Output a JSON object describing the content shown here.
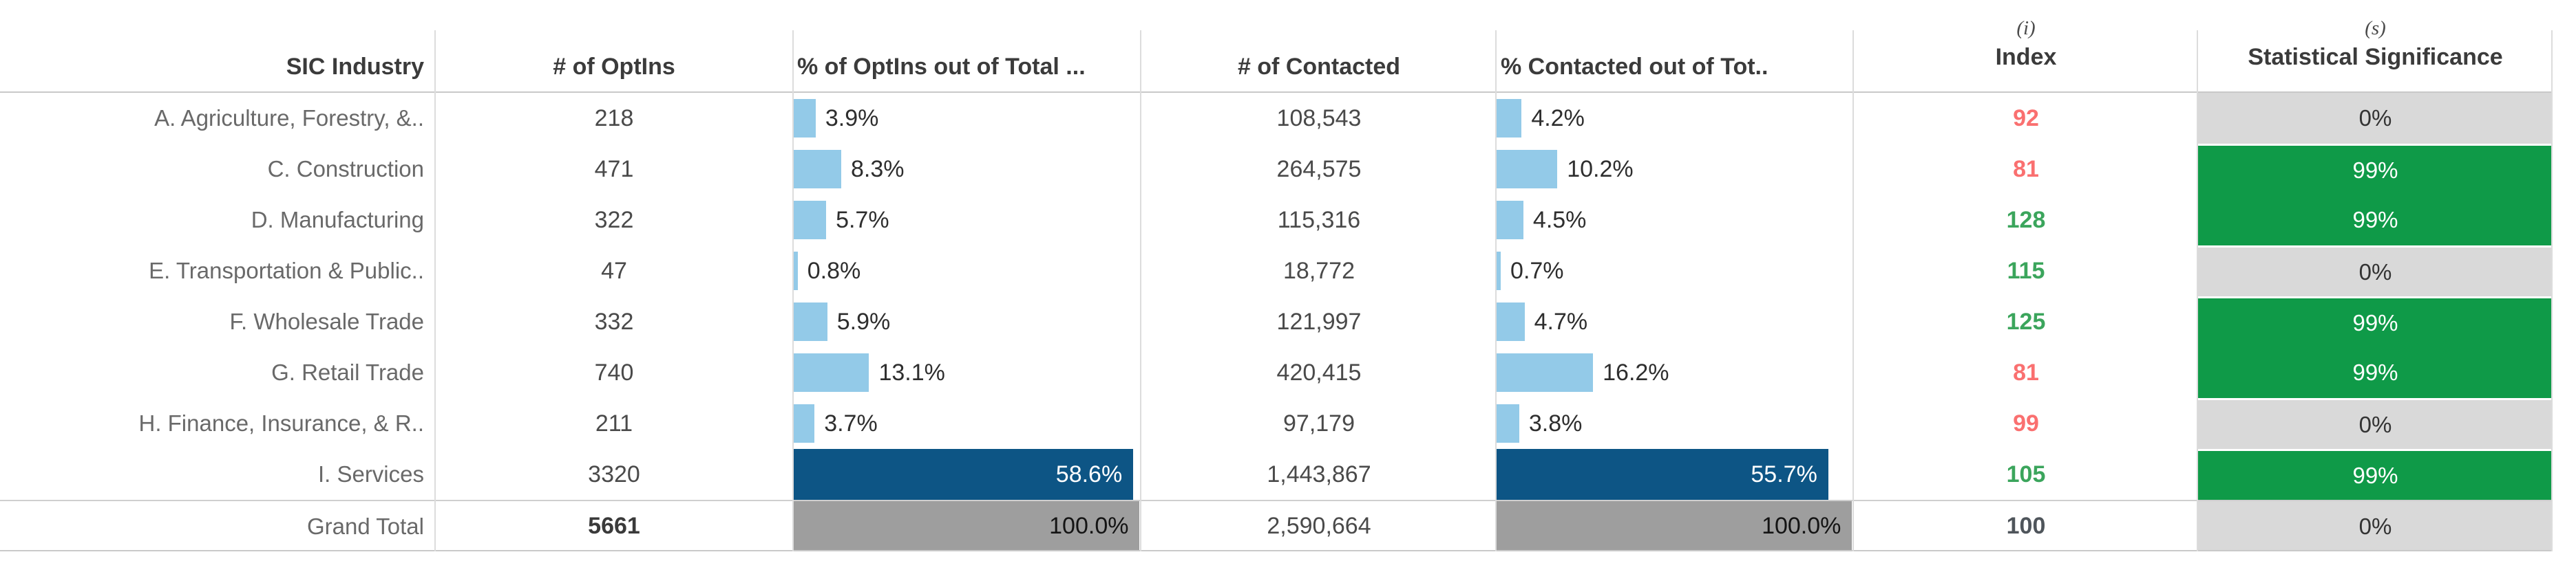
{
  "table": {
    "columns": {
      "industry": "SIC Industry",
      "optins": "# of OptIns",
      "optins_pct": "% of OptIns out of Total ...",
      "contacted": "# of Contacted",
      "contacted_pct": "% Contacted out of Tot..",
      "index_sup": "(i)",
      "index": "Index",
      "statsig_sup": "(s)",
      "statsig": "Statistical Significance"
    },
    "rows": [
      {
        "industry": "A. Agriculture, Forestry, &..",
        "optins": "218",
        "optins_pct": "3.9%",
        "contacted": "108,543",
        "contacted_pct": "4.2%",
        "index": "92",
        "stat_sig": "0%",
        "total": false
      },
      {
        "industry": "C. Construction",
        "optins": "471",
        "optins_pct": "8.3%",
        "contacted": "264,575",
        "contacted_pct": "10.2%",
        "index": "81",
        "stat_sig": "99%",
        "total": false
      },
      {
        "industry": "D. Manufacturing",
        "optins": "322",
        "optins_pct": "5.7%",
        "contacted": "115,316",
        "contacted_pct": "4.5%",
        "index": "128",
        "stat_sig": "99%",
        "total": false
      },
      {
        "industry": "E. Transportation & Public..",
        "optins": "47",
        "optins_pct": "0.8%",
        "contacted": "18,772",
        "contacted_pct": "0.7%",
        "index": "115",
        "stat_sig": "0%",
        "total": false
      },
      {
        "industry": "F. Wholesale Trade",
        "optins": "332",
        "optins_pct": "5.9%",
        "contacted": "121,997",
        "contacted_pct": "4.7%",
        "index": "125",
        "stat_sig": "99%",
        "total": false
      },
      {
        "industry": "G. Retail Trade",
        "optins": "740",
        "optins_pct": "13.1%",
        "contacted": "420,415",
        "contacted_pct": "16.2%",
        "index": "81",
        "stat_sig": "99%",
        "total": false
      },
      {
        "industry": "H. Finance, Insurance, & R..",
        "optins": "211",
        "optins_pct": "3.7%",
        "contacted": "97,179",
        "contacted_pct": "3.8%",
        "index": "99",
        "stat_sig": "0%",
        "total": false
      },
      {
        "industry": "I. Services",
        "optins": "3320",
        "optins_pct": "58.6%",
        "contacted": "1,443,867",
        "contacted_pct": "55.7%",
        "index": "105",
        "stat_sig": "99%",
        "total": false
      },
      {
        "industry": "Grand Total",
        "optins": "5661",
        "optins_pct": "100.0%",
        "contacted": "2,590,664",
        "contacted_pct": "100.0%",
        "index": "100",
        "stat_sig": "0%",
        "total": true
      }
    ]
  },
  "colors": {
    "bar_light_blue": "#93CAE8",
    "bar_dark_blue": "#0D5585",
    "bar_gray": "#9E9E9E",
    "sig_green": "#0F9A48",
    "sig_gray": "#D9D9D9",
    "index_red": "#FA7070",
    "index_green": "#3BA55C"
  },
  "chart_data": {
    "type": "table",
    "title": "",
    "columns": [
      "SIC Industry",
      "# of OptIns",
      "% of OptIns out of Total ...",
      "# of Contacted",
      "% Contacted out of Tot..",
      "Index",
      "Statistical Significance"
    ],
    "bar_columns": [
      "% of OptIns out of Total ...",
      "% Contacted out of Tot.."
    ],
    "bar_axis_max_pct": 60,
    "categories": [
      "A. Agriculture, Forestry, &..",
      "C. Construction",
      "D. Manufacturing",
      "E. Transportation & Public..",
      "F. Wholesale Trade",
      "G. Retail Trade",
      "H. Finance, Insurance, & R..",
      "I. Services",
      "Grand Total"
    ],
    "series": [
      {
        "name": "# of OptIns",
        "values": [
          218,
          471,
          322,
          47,
          332,
          740,
          211,
          3320,
          5661
        ]
      },
      {
        "name": "% of OptIns out of Total",
        "values": [
          3.9,
          8.3,
          5.7,
          0.8,
          5.9,
          13.1,
          3.7,
          58.6,
          100.0
        ]
      },
      {
        "name": "# of Contacted",
        "values": [
          108543,
          264575,
          115316,
          18772,
          121997,
          420415,
          97179,
          1443867,
          2590664
        ]
      },
      {
        "name": "% Contacted out of Total",
        "values": [
          4.2,
          10.2,
          4.5,
          0.7,
          4.7,
          16.2,
          3.8,
          55.7,
          100.0
        ]
      },
      {
        "name": "Index",
        "values": [
          92,
          81,
          128,
          115,
          125,
          81,
          99,
          105,
          100
        ]
      },
      {
        "name": "Statistical Significance",
        "values": [
          "0%",
          "99%",
          "99%",
          "0%",
          "99%",
          "99%",
          "0%",
          "99%",
          "0%"
        ]
      }
    ],
    "legend_position": "none",
    "grid": "off"
  }
}
